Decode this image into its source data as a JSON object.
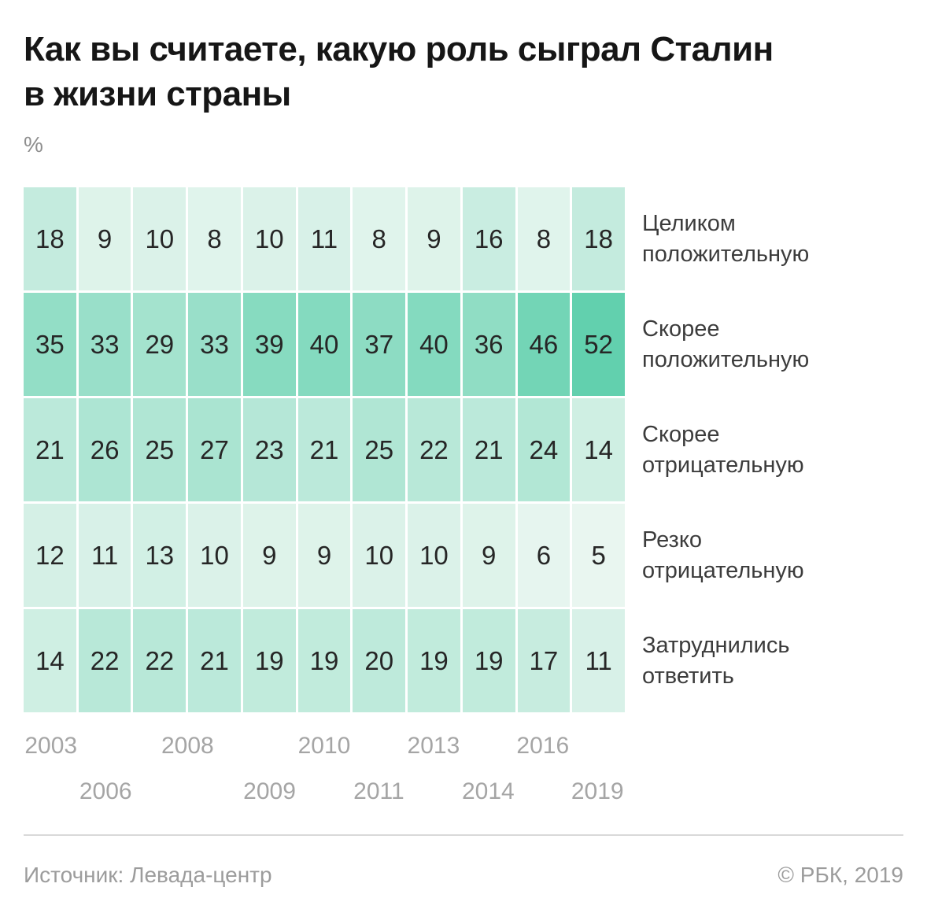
{
  "title": "Как вы считаете, какую роль сыграл Сталин\nв жизни страны",
  "unit_label": "%",
  "footer": {
    "source": "Источник: Левада-центр",
    "copyright": "© РБК, 2019"
  },
  "chart_data": {
    "type": "heatmap",
    "title": "Как вы считаете, какую роль сыграл Сталин в жизни страны",
    "unit": "%",
    "columns_count": 11,
    "rows": [
      {
        "label": "Целиком положительную",
        "values": [
          18,
          9,
          10,
          8,
          10,
          11,
          8,
          9,
          16,
          8,
          18
        ]
      },
      {
        "label": "Скорее положительную",
        "values": [
          35,
          33,
          29,
          33,
          39,
          40,
          37,
          40,
          36,
          46,
          52
        ]
      },
      {
        "label": "Скорее отрицательную",
        "values": [
          21,
          26,
          25,
          27,
          23,
          21,
          25,
          22,
          21,
          24,
          14
        ]
      },
      {
        "label": "Резко отрицательную",
        "values": [
          12,
          11,
          13,
          10,
          9,
          9,
          10,
          10,
          9,
          6,
          5
        ]
      },
      {
        "label": "Затруднились ответить",
        "values": [
          14,
          22,
          22,
          21,
          19,
          19,
          20,
          19,
          19,
          17,
          11
        ]
      }
    ],
    "x_tick_labels": [
      {
        "text": "2003",
        "tier": "top",
        "x_percent": 4.55
      },
      {
        "text": "2006",
        "tier": "bottom",
        "x_percent": 13.64
      },
      {
        "text": "2008",
        "tier": "top",
        "x_percent": 27.27
      },
      {
        "text": "2009",
        "tier": "bottom",
        "x_percent": 40.91
      },
      {
        "text": "2010",
        "tier": "top",
        "x_percent": 50.0
      },
      {
        "text": "2011",
        "tier": "bottom",
        "x_percent": 59.09
      },
      {
        "text": "2013",
        "tier": "top",
        "x_percent": 68.18
      },
      {
        "text": "2014",
        "tier": "bottom",
        "x_percent": 77.27
      },
      {
        "text": "2016",
        "tier": "top",
        "x_percent": 86.36
      },
      {
        "text": "2019",
        "tier": "bottom",
        "x_percent": 95.45
      }
    ],
    "color_scale": {
      "min_value": 5,
      "max_value": 52,
      "min_color": "#e9f6f0",
      "max_color": "#62d0ae"
    },
    "value_text_color": "#262626",
    "legend_position": "right",
    "grid": false
  }
}
